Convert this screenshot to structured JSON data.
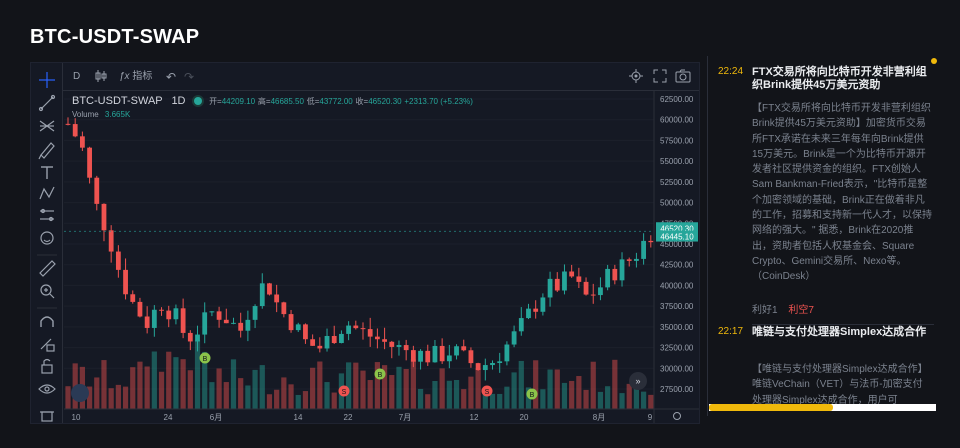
{
  "page": {
    "title": "BTC-USDT-SWAP"
  },
  "toolbar": {
    "interval": "D",
    "indicators": "指标",
    "left_tools": [
      "crosshair-icon",
      "trend-line-icon",
      "fib-icon",
      "brush-icon",
      "text-icon",
      "pattern-icon",
      "measure-tool-icon",
      "emoji-icon",
      "ruler-icon",
      "zoom-in-icon",
      "magnet-icon",
      "lock-drawing-icon",
      "lock-icon",
      "eye-icon",
      "trash-icon"
    ]
  },
  "legend": {
    "symbol": "BTC-USDT-SWAP",
    "interval": "1D",
    "open_label": "开=",
    "open": "44209.10",
    "high_label": "高=",
    "high": "46685.50",
    "low_label": "低=",
    "low": "43772.00",
    "close_label": "收=",
    "close": "46520.30",
    "change": "+2313.70 (+5.23%)",
    "volume_label": "Volume",
    "volume": "3.665K"
  },
  "price_scale": [
    "62500.00",
    "60000.00",
    "57500.00",
    "55000.00",
    "52500.00",
    "50000.00",
    "47500.00",
    "45000.00",
    "42500.00",
    "40000.00",
    "37500.00",
    "35000.00",
    "32500.00",
    "30000.00",
    "27500.00"
  ],
  "time_scale": [
    "10",
    "24",
    "6月",
    "14",
    "22",
    "7月",
    "12",
    "20",
    "8月",
    "9"
  ],
  "price_tags": {
    "last": "46520.30",
    "mark": "46445.10"
  },
  "markers": [
    {
      "label": "B",
      "color": "#8bc34a"
    },
    {
      "label": "B",
      "color": "#8bc34a"
    },
    {
      "label": "S",
      "color": "#ef5350"
    },
    {
      "label": "S",
      "color": "#ef5350"
    },
    {
      "label": "B",
      "color": "#8bc34a"
    }
  ],
  "colors": {
    "up": "#26a69a",
    "down": "#ef5350",
    "accent": "#f0b90b"
  },
  "news": [
    {
      "time": "22:24",
      "title": "FTX交易所将向比特币开发非营利组织Brink提供45万美元资助",
      "body": "【FTX交易所将向比特币开发非营利组织Brink提供45万美元资助】加密货币交易所FTX承诺在未来三年每年向Brink提供15万美元。Brink是一个为比特币开源开发者社区提供资金的组织。FTX创始人Sam Bankman-Fried表示，\"比特币是整个加密领域的基础，Brink正在做着非凡的工作，招募和支持新一代人才，以保持网络的强大。\" 据悉，Brink在2020推出，资助者包括人权基金会、Square Crypto、Gemini交易所、Nexo等。（CoinDesk）",
      "vote_up": "利好1",
      "vote_down": "利空7"
    },
    {
      "time": "22:17",
      "title": "唯链与支付处理器Simplex达成合作",
      "body": "【唯链与支付处理器Simplex达成合作】唯链VeChain（VET）与法币-加密支付处理器Simplex达成合作，用户可"
    }
  ]
}
